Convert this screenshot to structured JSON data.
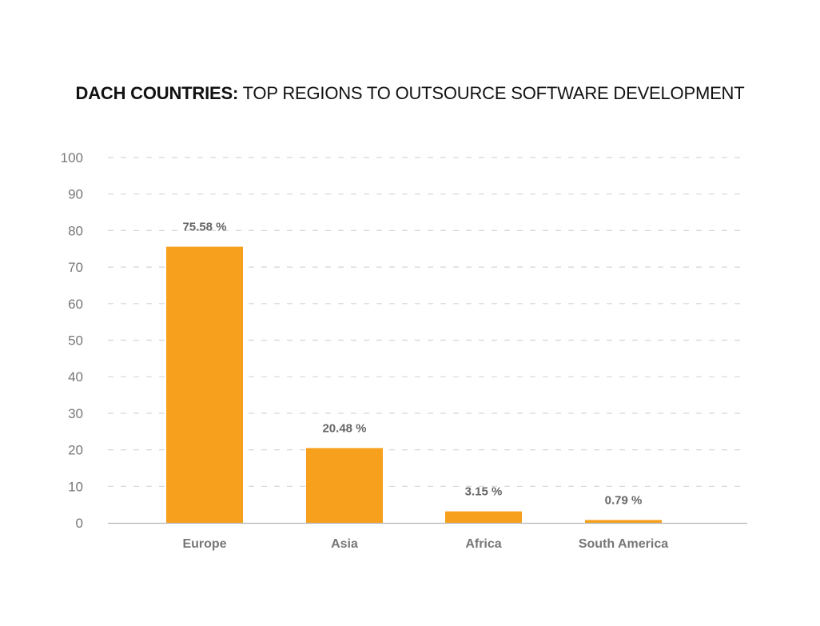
{
  "chart_data": {
    "type": "bar",
    "title_bold": "DACH COUNTRIES:",
    "title_rest": " TOP REGIONS TO OUTSOURCE SOFTWARE DEVELOPMENT",
    "categories": [
      "Europe",
      "Asia",
      "Africa",
      "South America"
    ],
    "values": [
      75.58,
      20.48,
      3.15,
      0.79
    ],
    "value_labels": [
      "75.58 %",
      "20.48 %",
      "3.15 %",
      "0.79 %"
    ],
    "y_ticks": [
      0,
      10,
      20,
      30,
      40,
      50,
      60,
      70,
      80,
      90,
      100
    ],
    "ylim": [
      0,
      100
    ],
    "xlabel": "",
    "ylabel": "",
    "grid": true,
    "legend": "none",
    "bar_color": "#F7A01E",
    "grid_color": "#d6d6d6",
    "axis_color": "#b5b5b5",
    "tick_label_color": "#777777",
    "value_label_color": "#666666",
    "category_label_color": "#777777"
  }
}
